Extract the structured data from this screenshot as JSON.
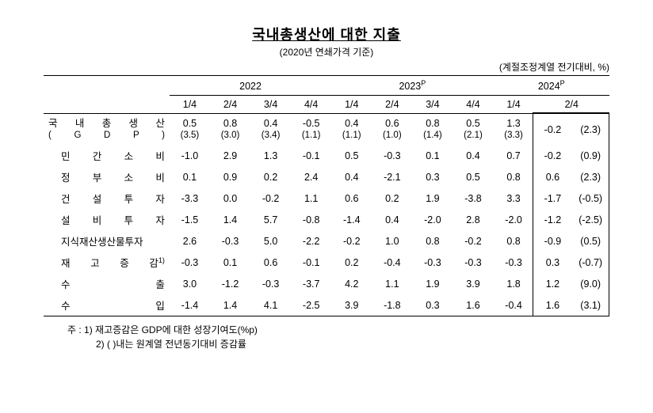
{
  "title": "국내총생산에 대한 지출",
  "subtitle": "(2020년 연쇄가격 기준)",
  "unit": "(계절조정계열 전기대비, %)",
  "years": [
    "2022",
    "2023",
    "2024"
  ],
  "year_super": [
    "",
    "P",
    "P"
  ],
  "quarters": [
    "1/4",
    "2/4",
    "3/4",
    "4/4",
    "1/4",
    "2/4",
    "3/4",
    "4/4",
    "1/4",
    "2/4"
  ],
  "rows": [
    {
      "label_main": "국  내  총  생  산",
      "label_sub": "(  G  D  P  )",
      "indent": false,
      "double": true,
      "vals_top": [
        "0.5",
        "0.8",
        "0.4",
        "-0.5",
        "0.4",
        "0.6",
        "0.8",
        "0.5",
        "1.3"
      ],
      "vals_bottom": [
        "(3.5)",
        "(3.0)",
        "(3.4)",
        "(1.1)",
        "(1.1)",
        "(1.0)",
        "(1.4)",
        "(2.1)",
        "(3.3)"
      ],
      "last_a": "-0.2",
      "last_b": "(2.3)"
    },
    {
      "label": "민  간  소  비",
      "indent": true,
      "vals": [
        "-1.0",
        "2.9",
        "1.3",
        "-0.1",
        "0.5",
        "-0.3",
        "0.1",
        "0.4",
        "0.7",
        "-0.2",
        "(0.9)"
      ]
    },
    {
      "label": "정  부  소  비",
      "indent": true,
      "vals": [
        "0.1",
        "0.9",
        "0.2",
        "2.4",
        "0.4",
        "-2.1",
        "0.3",
        "0.5",
        "0.8",
        "0.6",
        "(2.3)"
      ]
    },
    {
      "label": "건  설  투  자",
      "indent": true,
      "vals": [
        "-3.3",
        "0.0",
        "-0.2",
        "1.1",
        "0.6",
        "0.2",
        "1.9",
        "-3.8",
        "3.3",
        "-1.7",
        "(-0.5)"
      ]
    },
    {
      "label": "설  비  투  자",
      "indent": true,
      "vals": [
        "-1.5",
        "1.4",
        "5.7",
        "-0.8",
        "-1.4",
        "0.4",
        "-2.0",
        "2.8",
        "-2.0",
        "-1.2",
        "(-2.5)"
      ]
    },
    {
      "label": "지식재산생산물투자",
      "indent": true,
      "vals": [
        "2.6",
        "-0.3",
        "5.0",
        "-2.2",
        "-0.2",
        "1.0",
        "0.8",
        "-0.2",
        "0.8",
        "-0.9",
        "(0.5)"
      ]
    },
    {
      "label": "재  고  증  감",
      "sup": "1)",
      "indent": true,
      "vals": [
        "-0.3",
        "0.1",
        "0.6",
        "-0.1",
        "0.2",
        "-0.4",
        "-0.3",
        "-0.3",
        "-0.3",
        "0.3",
        "(-0.7)"
      ]
    },
    {
      "label": "수        출",
      "indent": true,
      "vals": [
        "3.0",
        "-1.2",
        "-0.3",
        "-3.7",
        "4.2",
        "1.1",
        "1.9",
        "3.9",
        "1.8",
        "1.2",
        "(9.0)"
      ]
    },
    {
      "label": "수        입",
      "indent": true,
      "vals": [
        "-1.4",
        "1.4",
        "4.1",
        "-2.5",
        "3.9",
        "-1.8",
        "0.3",
        "1.6",
        "-0.4",
        "1.6",
        "(3.1)"
      ]
    }
  ],
  "footnotes": [
    "주 : 1)  재고증감은 GDP에 대한 성장기여도(%p)",
    "2)  (   )내는 원계열 전년동기대비 증감률"
  ],
  "col_widths": {
    "label": "140",
    "val": "45",
    "last": "42"
  }
}
